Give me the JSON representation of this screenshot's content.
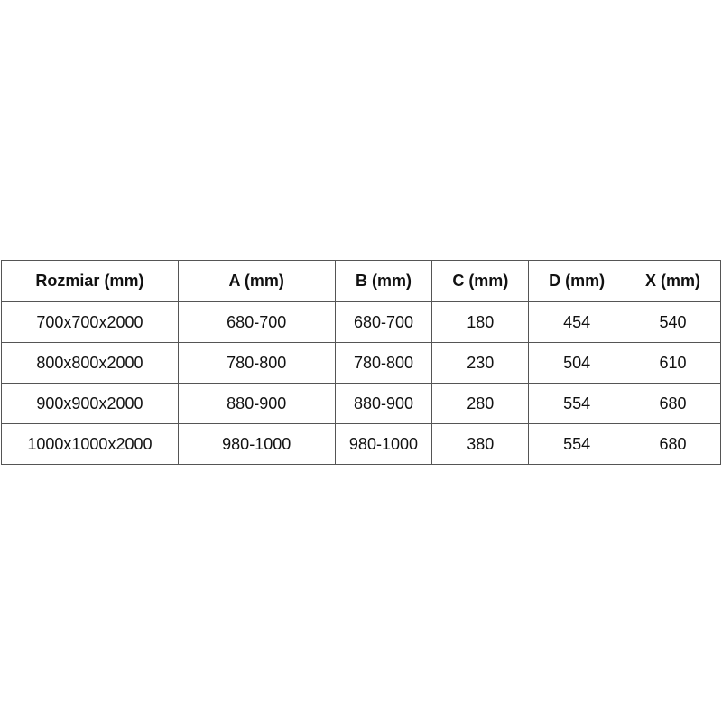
{
  "table": {
    "headers": [
      "Rozmiar (mm)",
      "A (mm)",
      "B (mm)",
      "C (mm)",
      "D (mm)",
      "X (mm)"
    ],
    "rows": [
      [
        "700x700x2000",
        "680-700",
        "680-700",
        "180",
        "454",
        "540"
      ],
      [
        "800x800x2000",
        "780-800",
        "780-800",
        "230",
        "504",
        "610"
      ],
      [
        "900x900x2000",
        "880-900",
        "880-900",
        "280",
        "554",
        "680"
      ],
      [
        "1000x1000x2000",
        "980-1000",
        "980-1000",
        "380",
        "554",
        "680"
      ]
    ]
  }
}
